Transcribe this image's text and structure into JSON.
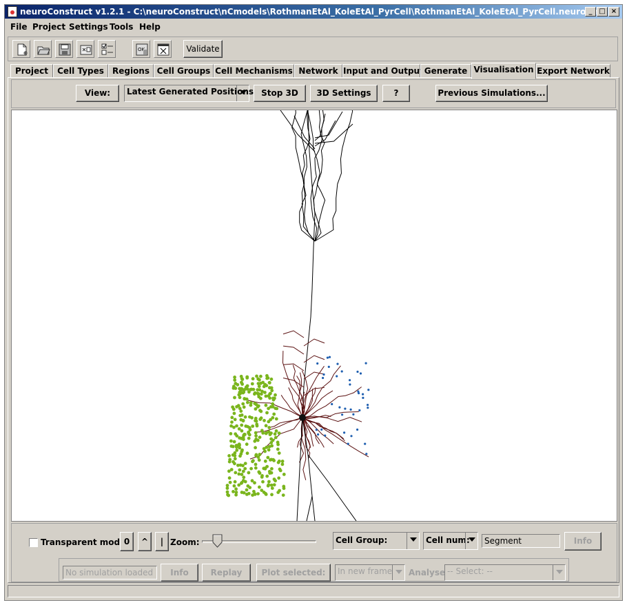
{
  "window": {
    "title": "neuroConstruct v1.2.1 - C:\\neuroConstruct\\nCmodels\\RothmanEtAl_KoleEtAl_PyrCell\\RothmanEtAl_KoleEtAl_PyrCell.neuro.xml"
  },
  "window_buttons": {
    "minimize": "_",
    "maximize": "□",
    "close": "×"
  },
  "menu": [
    "File",
    "Project",
    "Settings",
    "Tools",
    "Help"
  ],
  "toolbar": {
    "validate_label": "Validate"
  },
  "tabs": [
    "Project",
    "Cell Types",
    "Regions",
    "Cell Groups",
    "Cell Mechanisms",
    "Network",
    "Input and Output",
    "Generate",
    "Visualisation",
    "Export Network"
  ],
  "active_tab": "Visualisation",
  "viewbar": {
    "view_label": "View:",
    "view_selected": "Latest Generated Positions",
    "stop3d_label": "Stop 3D",
    "settings3d_label": "3D Settings",
    "help_label": "?",
    "previous_sims_label": "Previous Simulations..."
  },
  "controls": {
    "transparent_label": "Transparent mode",
    "transparent_checked": false,
    "btn_zero": "0",
    "btn_up": "^",
    "btn_bar": "|",
    "zoom_label": "Zoom:",
    "zoom_level": 0.1,
    "cell_group_label": "Cell Group:",
    "cell_num_label": "Cell num:",
    "segment_value": "Segment",
    "info_label": "Info"
  },
  "simulation": {
    "no_sim_placeholder": "No simulation loaded",
    "info_label": "Info",
    "replay_label": "Replay",
    "plot_selected_label": "Plot selected:",
    "in_new_frame": "In new frame",
    "analyse_label": "Analyse:",
    "analyse_select": "-- Select: --"
  },
  "colors": {
    "titlebar_start": "#0a246a",
    "neuron_apical": "#000000",
    "neuron_basal": "#5a1010",
    "cell_group_green": "#7ab51d",
    "cell_group_blue": "#1f5fb0"
  }
}
